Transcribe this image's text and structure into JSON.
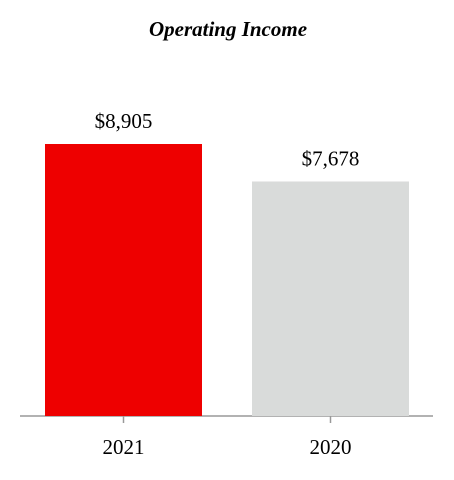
{
  "chart_data": {
    "type": "bar",
    "title": "Operating Income",
    "categories": [
      "2021",
      "2020"
    ],
    "values": [
      8905,
      7678
    ],
    "value_labels": [
      "$8,905",
      "$7,678"
    ],
    "colors": [
      "#ee0000",
      "#d9dbda"
    ]
  }
}
